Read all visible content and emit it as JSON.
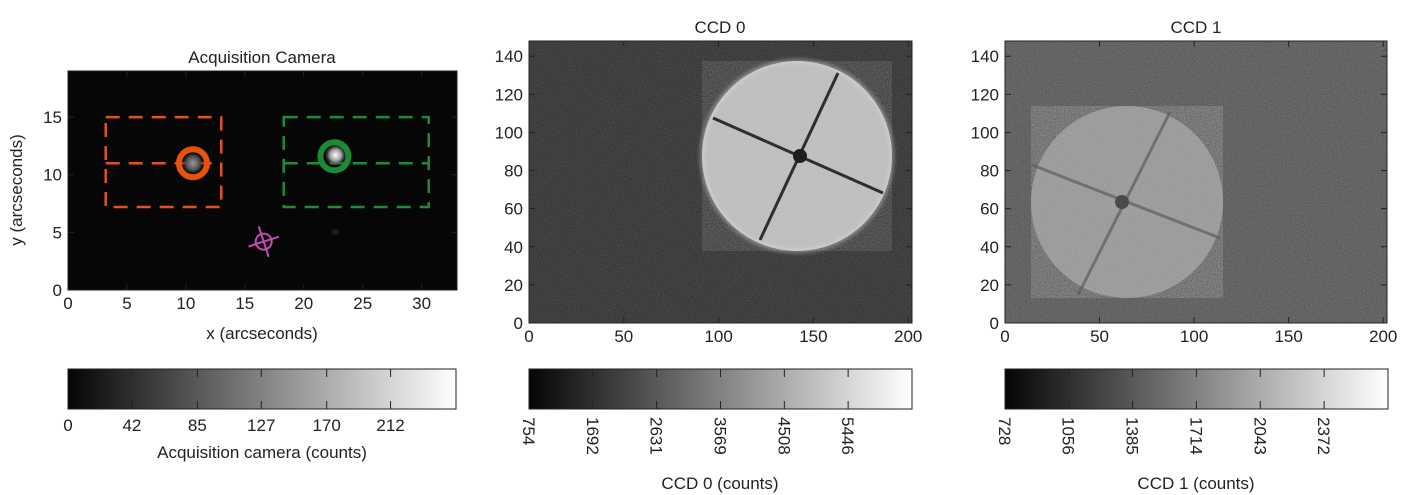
{
  "panels": [
    {
      "title": "Acquisition Camera",
      "xlabel": "x (arcseconds)",
      "ylabel": "y (arcseconds)",
      "xticks": [
        "0",
        "5",
        "10",
        "15",
        "20",
        "25",
        "30"
      ],
      "yticks": [
        "0",
        "5",
        "10",
        "15"
      ],
      "colorbar_label": "Acquisition camera (counts)",
      "colorbar_ticks": [
        "0",
        "42",
        "85",
        "127",
        "170",
        "212"
      ]
    },
    {
      "title": "CCD 0",
      "xticks": [
        "0",
        "50",
        "100",
        "150",
        "200"
      ],
      "yticks": [
        "0",
        "20",
        "40",
        "60",
        "80",
        "100",
        "120",
        "140"
      ],
      "colorbar_label": "CCD 0 (counts)",
      "colorbar_ticks": [
        "754",
        "1692",
        "2631",
        "3569",
        "4508",
        "5446"
      ]
    },
    {
      "title": "CCD 1",
      "xticks": [
        "0",
        "50",
        "100",
        "150",
        "200"
      ],
      "yticks": [
        "0",
        "20",
        "40",
        "60",
        "80",
        "100",
        "120",
        "140"
      ],
      "colorbar_label": "CCD 1 (counts)",
      "colorbar_ticks": [
        "728",
        "1056",
        "1385",
        "1714",
        "2043",
        "2372"
      ]
    }
  ],
  "chart_data": [
    {
      "type": "heatmap",
      "title": "Acquisition Camera",
      "xlabel": "x (arcseconds)",
      "ylabel": "y (arcseconds)",
      "xlim": [
        0,
        33
      ],
      "ylim": [
        0,
        19
      ],
      "colormap": "gray",
      "clim": [
        0,
        255
      ],
      "colorbar_ticks": [
        0,
        42,
        85,
        127,
        170,
        212
      ],
      "annotations": [
        {
          "kind": "dashed-box",
          "color": "#e2531c",
          "x": [
            3.2,
            13.0
          ],
          "y": [
            7.2,
            15.0
          ]
        },
        {
          "kind": "dashed-line",
          "color": "#e2531c",
          "x": [
            3.2,
            13.0
          ],
          "y": 11.0
        },
        {
          "kind": "dashed-box",
          "color": "#1f8a3a",
          "x": [
            18.3,
            30.6
          ],
          "y": [
            7.2,
            15.0
          ]
        },
        {
          "kind": "dashed-line",
          "color": "#1f8a3a",
          "x": [
            18.3,
            30.6
          ],
          "y": 11.0
        },
        {
          "kind": "circle",
          "color": "#e8520f",
          "x": 10.6,
          "y": 11.0
        },
        {
          "kind": "circle",
          "color": "#1a8a34",
          "x": 22.6,
          "y": 11.6
        },
        {
          "kind": "crosshair",
          "color": "#c24fb0",
          "x": 16.6,
          "y": 4.2
        }
      ]
    },
    {
      "type": "heatmap",
      "title": "CCD 0",
      "xlim": [
        0,
        202
      ],
      "ylim": [
        0,
        148
      ],
      "colormap": "gray",
      "clim": [
        754,
        6385
      ],
      "colorbar_label": "CCD 0 (counts)",
      "colorbar_ticks": [
        754,
        1692,
        2631,
        3569,
        4508,
        5446
      ],
      "features": [
        {
          "kind": "bright-disk",
          "cx": 141,
          "cy": 88,
          "r": 51
        }
      ]
    },
    {
      "type": "heatmap",
      "title": "CCD 1",
      "xlim": [
        0,
        202
      ],
      "ylim": [
        0,
        148
      ],
      "colormap": "gray",
      "clim": [
        728,
        2701
      ],
      "colorbar_label": "CCD 1 (counts)",
      "colorbar_ticks": [
        728,
        1056,
        1385,
        1714,
        2043,
        2372
      ],
      "features": [
        {
          "kind": "bright-disk",
          "cx": 64,
          "cy": 63,
          "r": 61
        }
      ]
    }
  ],
  "colors": {
    "orange": "#e2531c",
    "green": "#1f8a3a",
    "magenta": "#c24fb0",
    "frame": "#222222"
  }
}
